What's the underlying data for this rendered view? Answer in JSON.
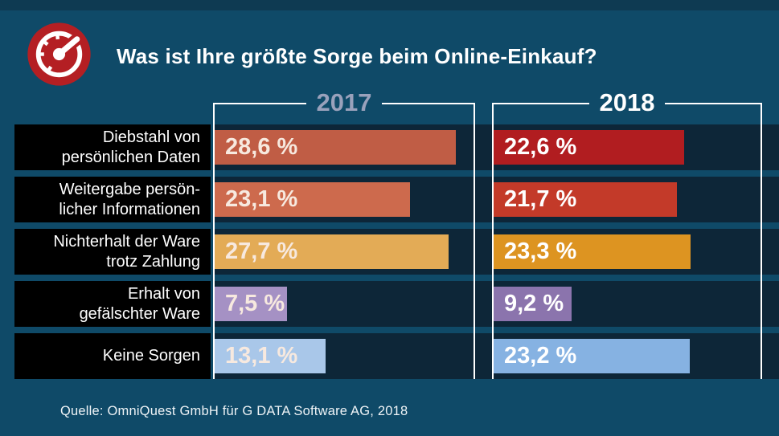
{
  "header": {
    "title": "Was ist Ihre größte Sorge beim Online-Einkauf?",
    "icon": "speedometer-icon"
  },
  "columns": [
    {
      "year": "2017",
      "text_color": "#99a1bb"
    },
    {
      "year": "2018",
      "text_color": "#ffffff"
    }
  ],
  "chart_data": {
    "type": "bar",
    "orientation": "horizontal",
    "title": "Was ist Ihre größte Sorge beim Online-Einkauf?",
    "categories": [
      "Diebstahl von persönlichen Daten",
      "Weitergabe persönlicher Informationen",
      "Nichterhalt der Ware trotz Zahlung",
      "Erhalt von gefälschter Ware",
      "Keine Sorgen"
    ],
    "categories_display": [
      [
        "Diebstahl von",
        "persönlichen Daten"
      ],
      [
        "Weitergabe persön-",
        "licher Informationen"
      ],
      [
        "Nichterhalt der Ware",
        "trotz Zahlung"
      ],
      [
        "Erhalt von",
        "gefälschter Ware"
      ],
      [
        "Keine Sorgen"
      ]
    ],
    "series": [
      {
        "name": "2017",
        "values": [
          28.6,
          23.1,
          27.7,
          7.5,
          13.1
        ],
        "labels": [
          "28,6 %",
          "23,1 %",
          "27,7 %",
          "7,5 %",
          "13,1 %"
        ],
        "colors": [
          "#c05d45",
          "#cd6a4d",
          "#e3ab56",
          "#a591c4",
          "#a9c7e9"
        ],
        "text_color": "#f7e9df"
      },
      {
        "name": "2018",
        "values": [
          22.6,
          21.7,
          23.3,
          9.2,
          23.2
        ],
        "labels": [
          "22,6 %",
          "21,7 %",
          "23,3 %",
          "9,2 %",
          "23,2 %"
        ],
        "colors": [
          "#b11d20",
          "#c33a29",
          "#dd9421",
          "#8b74ad",
          "#86b2e2"
        ],
        "text_color": "#ffffff"
      }
    ],
    "xlim": [
      0,
      31
    ],
    "legend_position": "column headers",
    "grid": false
  },
  "source": "Quelle: OmniQuest GmbH für G DATA Software AG, 2018",
  "colors": {
    "background": "#0f4a68",
    "top_strip": "#0e3a52",
    "row_track": "#0d2638",
    "label_box": "#000000",
    "frame_line": "#ffffff",
    "icon_circle": "#b41f23",
    "icon_glyph": "#ffffff"
  }
}
